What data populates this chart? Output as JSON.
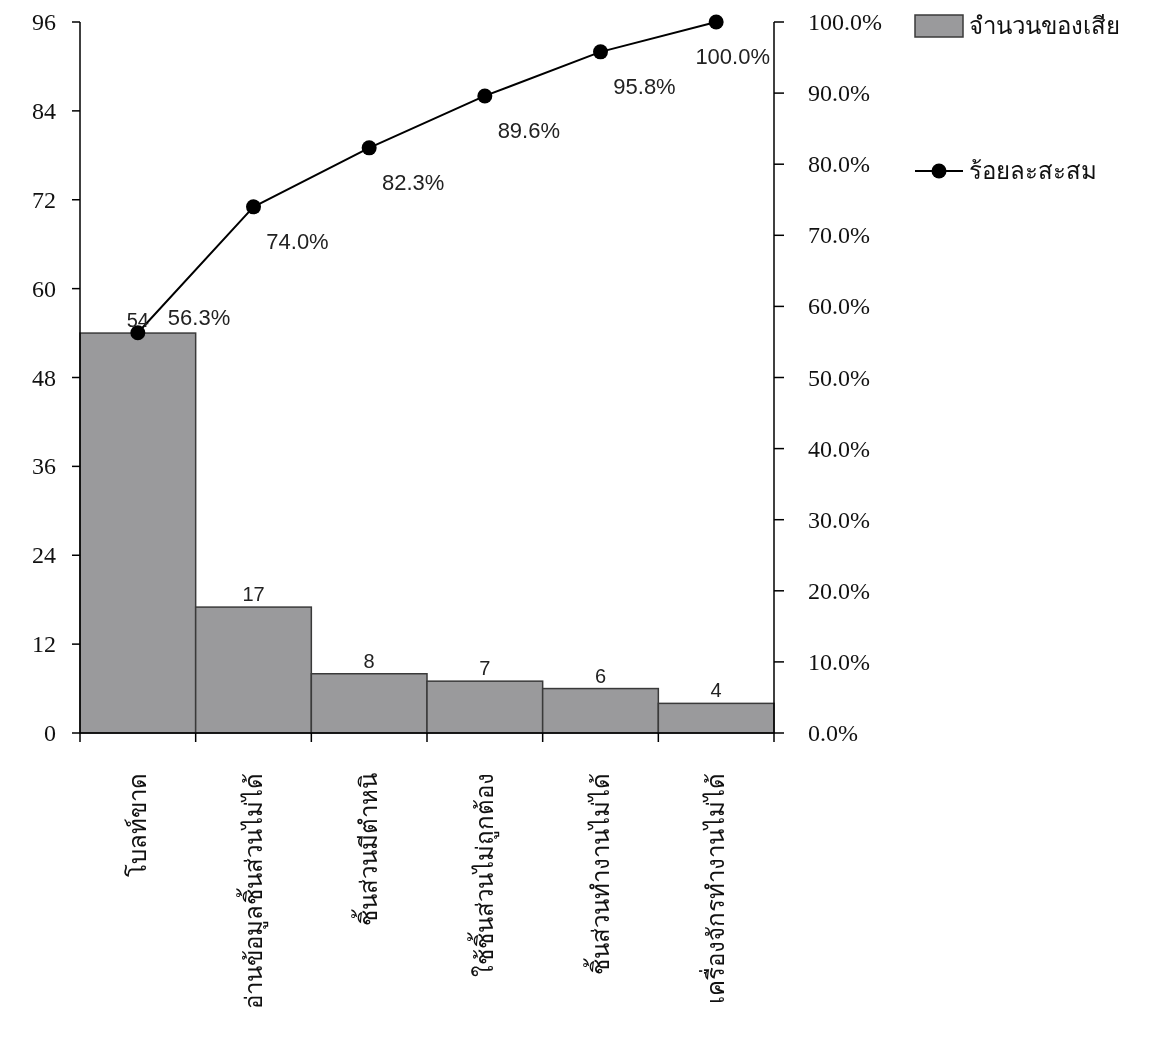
{
  "chart_data": {
    "type": "bar",
    "categories": [
      "โบลท์ขาด",
      "อ่านข้อมูลชิ้นส่วนไม่ได้",
      "ชิ้นส่วนมีตำหนิ",
      "ใช้ชิ้นส่วนไม่ถูกต้อง",
      "ชิ้นส่วนทำงานไม่ได้",
      "เครื่องจักรทำงานไม่ได้"
    ],
    "series": [
      {
        "name": "จำนวนของเสีย",
        "color": "#9a9a9c",
        "values": [
          54,
          17,
          8,
          7,
          6,
          4
        ],
        "value_labels": [
          "54",
          "17",
          "8",
          "7",
          "6",
          "4"
        ]
      },
      {
        "name": "ร้อยละสะสม",
        "type": "line",
        "axis": "y2",
        "color": "#000000",
        "values": [
          56.3,
          74.0,
          82.3,
          89.6,
          95.8,
          100.0
        ],
        "value_labels": [
          "56.3%",
          "74.0%",
          "82.3%",
          "89.6%",
          "95.8%",
          "100.0%"
        ]
      }
    ],
    "ylim": [
      0,
      96
    ],
    "yticks": [
      0,
      12,
      24,
      36,
      48,
      60,
      72,
      84,
      96
    ],
    "y2lim": [
      0,
      100
    ],
    "y2ticks": [
      {
        "value": 0,
        "label": "0.0%"
      },
      {
        "value": 10,
        "label": "10.0%"
      },
      {
        "value": 20,
        "label": "20.0%"
      },
      {
        "value": 30,
        "label": "30.0%"
      },
      {
        "value": 40,
        "label": "40.0%"
      },
      {
        "value": 50,
        "label": "50.0%"
      },
      {
        "value": 60,
        "label": "60.0%"
      },
      {
        "value": 70,
        "label": "70.0%"
      },
      {
        "value": 80,
        "label": "80.0%"
      },
      {
        "value": 90,
        "label": "90.0%"
      },
      {
        "value": 100,
        "label": "100.0%"
      }
    ],
    "legend": "top right",
    "marker": "circle",
    "line_style": "solid"
  }
}
